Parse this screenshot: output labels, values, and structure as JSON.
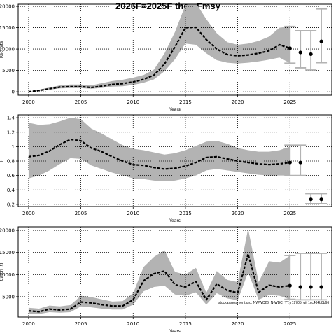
{
  "title": "2026F=2025F then Fmsy",
  "footnote": "stockassessment.org, NWWC26_N-WBC_YT, r19705, git 1cc464b8b66",
  "chart_data": [
    {
      "type": "area",
      "name": "recruitment",
      "xlabel": "Years",
      "ylabel": "Recruits",
      "xlim": [
        1999,
        2029
      ],
      "ylim": [
        -800,
        20500
      ],
      "xticks": [
        2000,
        2005,
        2010,
        2015,
        2020,
        2025
      ],
      "yticks": [
        0,
        5000,
        10000,
        15000,
        20000
      ],
      "x": [
        2000,
        2001,
        2002,
        2003,
        2004,
        2005,
        2006,
        2007,
        2008,
        2009,
        2010,
        2011,
        2012,
        2013,
        2014,
        2015,
        2016,
        2017,
        2018,
        2019,
        2020,
        2021,
        2022,
        2023,
        2024,
        2025
      ],
      "estimate": [
        0,
        300,
        700,
        1100,
        1200,
        1200,
        1000,
        1300,
        1700,
        1900,
        2300,
        2900,
        3900,
        6500,
        10500,
        15000,
        15100,
        12200,
        10000,
        8700,
        8400,
        8600,
        9000,
        9600,
        11000,
        10200
      ],
      "lower": [
        0,
        200,
        500,
        800,
        850,
        850,
        700,
        900,
        1200,
        1300,
        1600,
        2100,
        2900,
        4800,
        7600,
        11300,
        11000,
        9000,
        7400,
        6800,
        6600,
        6800,
        7100,
        7500,
        8000,
        6700
      ],
      "upper": [
        0,
        500,
        1000,
        1500,
        1700,
        1700,
        1500,
        2000,
        2500,
        2800,
        3300,
        3900,
        5200,
        9000,
        14000,
        20300,
        20800,
        17000,
        13700,
        11600,
        11000,
        11300,
        11900,
        12900,
        15000,
        15300
      ],
      "forecast": [
        {
          "x": 2025,
          "mid": 10200,
          "low": 6700,
          "high": 15300
        },
        {
          "x": 2026,
          "mid": 9200,
          "low": 5600,
          "high": 14300
        },
        {
          "x": 2027,
          "mid": 8800,
          "low": 5100,
          "high": 14300
        },
        {
          "x": 2028,
          "mid": 11800,
          "low": 6800,
          "high": 19400
        }
      ]
    },
    {
      "type": "area",
      "name": "fishing-mortality",
      "xlabel": "Years",
      "ylabel": "F",
      "xlim": [
        1999,
        2029
      ],
      "ylim": [
        0.17,
        1.44
      ],
      "xticks": [
        2000,
        2005,
        2010,
        2015,
        2020,
        2025
      ],
      "yticks": [
        0.2,
        0.4,
        0.6,
        0.8,
        1.0,
        1.2,
        1.4
      ],
      "x": [
        2000,
        2001,
        2002,
        2003,
        2004,
        2005,
        2006,
        2007,
        2008,
        2009,
        2010,
        2011,
        2012,
        2013,
        2014,
        2015,
        2016,
        2017,
        2018,
        2019,
        2020,
        2021,
        2022,
        2023,
        2024,
        2025
      ],
      "estimate": [
        0.86,
        0.88,
        0.94,
        1.03,
        1.1,
        1.08,
        0.98,
        0.93,
        0.86,
        0.8,
        0.75,
        0.74,
        0.71,
        0.69,
        0.7,
        0.73,
        0.78,
        0.85,
        0.86,
        0.83,
        0.8,
        0.78,
        0.76,
        0.75,
        0.76,
        0.78
      ],
      "lower": [
        0.56,
        0.6,
        0.67,
        0.76,
        0.84,
        0.83,
        0.74,
        0.69,
        0.64,
        0.6,
        0.56,
        0.55,
        0.53,
        0.52,
        0.53,
        0.56,
        0.6,
        0.67,
        0.69,
        0.67,
        0.65,
        0.63,
        0.61,
        0.6,
        0.6,
        0.6
      ],
      "upper": [
        1.33,
        1.3,
        1.31,
        1.35,
        1.4,
        1.38,
        1.25,
        1.18,
        1.1,
        1.02,
        0.97,
        0.95,
        0.92,
        0.89,
        0.91,
        0.95,
        1.01,
        1.07,
        1.08,
        1.04,
        0.98,
        0.95,
        0.93,
        0.93,
        0.95,
        1.0
      ],
      "forecast": [
        {
          "x": 2025,
          "mid": 0.78,
          "low": 0.6,
          "high": 1.02
        },
        {
          "x": 2026,
          "mid": 0.78,
          "low": 0.6,
          "high": 1.02
        },
        {
          "x": 2027,
          "mid": 0.27,
          "low": 0.21,
          "high": 0.35
        },
        {
          "x": 2028,
          "mid": 0.27,
          "low": 0.21,
          "high": 0.35
        }
      ]
    },
    {
      "type": "area",
      "name": "catch",
      "xlabel": "Years",
      "ylabel": "Catch (t)",
      "xlim": [
        1999,
        2029
      ],
      "ylim": [
        400,
        20800
      ],
      "xticks": [
        2000,
        2005,
        2010,
        2015,
        2020,
        2025
      ],
      "yticks": [
        5000,
        10000,
        15000,
        20000
      ],
      "x": [
        2000,
        2001,
        2002,
        2003,
        2004,
        2005,
        2006,
        2007,
        2008,
        2009,
        2010,
        2011,
        2012,
        2013,
        2014,
        2015,
        2016,
        2017,
        2018,
        2019,
        2020,
        2021,
        2022,
        2023,
        2024,
        2025
      ],
      "estimate": [
        1800,
        1600,
        2200,
        2000,
        2200,
        3800,
        3600,
        3200,
        2900,
        2900,
        4300,
        8600,
        10200,
        10800,
        7700,
        7200,
        8400,
        4300,
        7900,
        6400,
        5900,
        14600,
        6000,
        7600,
        7200,
        7500
      ],
      "lower": [
        1200,
        1100,
        1500,
        1400,
        1500,
        2800,
        2600,
        2300,
        2100,
        2100,
        3200,
        6200,
        7200,
        7500,
        5500,
        5200,
        6000,
        3200,
        5800,
        4600,
        4200,
        10500,
        4300,
        5400,
        5200,
        4400
      ],
      "upper": [
        2500,
        2300,
        3000,
        2800,
        3100,
        5200,
        4900,
        4400,
        3900,
        4000,
        5800,
        11700,
        14000,
        15500,
        10600,
        10000,
        11500,
        5900,
        10800,
        8800,
        8300,
        20400,
        8300,
        13000,
        12700,
        14300
      ],
      "forecast": [
        {
          "x": 2025,
          "mid": 7500,
          "low": 4400,
          "high": 14300
        },
        {
          "x": 2026,
          "mid": 7200,
          "low": 4300,
          "high": 14800
        },
        {
          "x": 2027,
          "mid": 7200,
          "low": 4300,
          "high": 14800
        },
        {
          "x": 2028,
          "mid": 7200,
          "low": 4300,
          "high": 14800
        }
      ]
    }
  ]
}
